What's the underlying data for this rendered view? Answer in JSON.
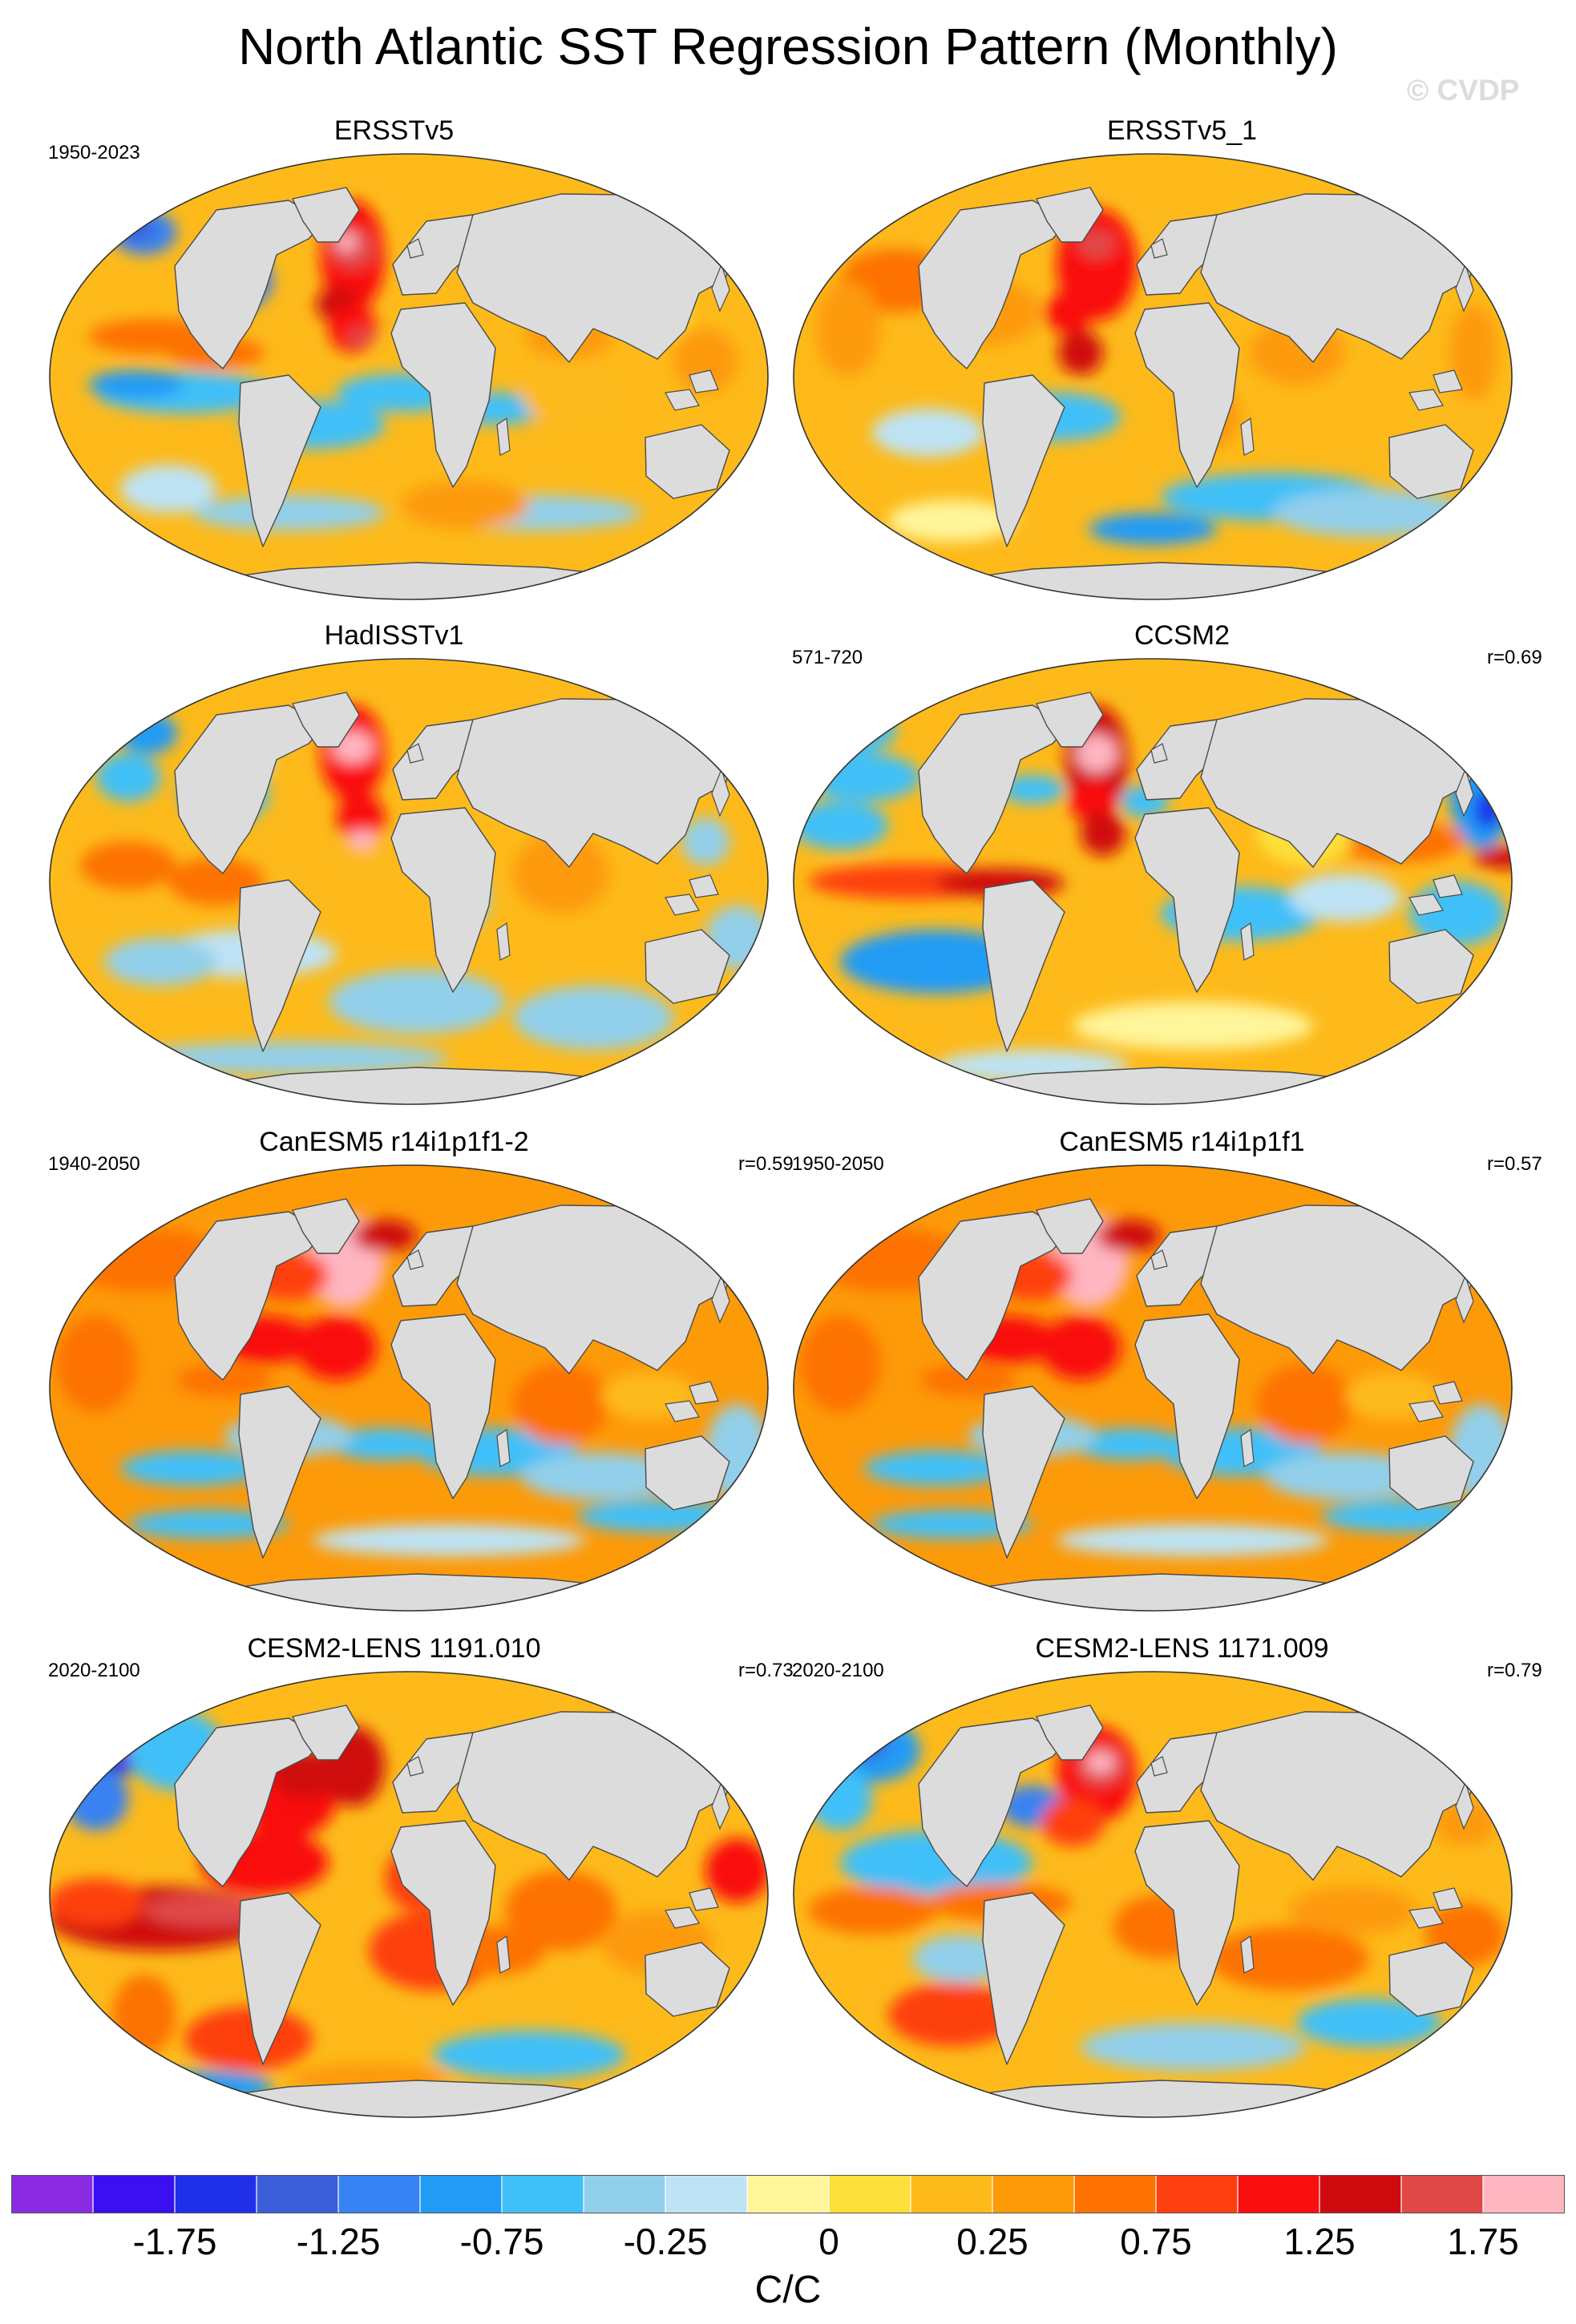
{
  "title": "North Atlantic SST Regression Pattern (Monthly)",
  "credit": "© CVDP",
  "panels": [
    {
      "name": "ERSSTv5",
      "period": "1950-2023",
      "r": "",
      "profile": "obs1"
    },
    {
      "name": "ERSSTv5_1",
      "period": "",
      "r": "",
      "profile": "obs2"
    },
    {
      "name": "HadISSTv1",
      "period": "",
      "r": "",
      "profile": "had"
    },
    {
      "name": "CCSM2",
      "period": "571-720",
      "r": "r=0.69",
      "profile": "ccsm"
    },
    {
      "name": "CanESM5 r14i1p1f1-2",
      "period": "1940-2050",
      "r": "r=0.59",
      "profile": "can"
    },
    {
      "name": "CanESM5 r14i1p1f1",
      "period": "1950-2050",
      "r": "r=0.57",
      "profile": "can"
    },
    {
      "name": "CESM2-LENS 1191.010",
      "period": "2020-2100",
      "r": "r=0.73",
      "profile": "cesmA"
    },
    {
      "name": "CESM2-LENS 1171.009",
      "period": "2020-2100",
      "r": "r=0.79",
      "profile": "cesmB"
    }
  ],
  "colorbar": {
    "colors": [
      "#8a2be2",
      "#3a10f0",
      "#1f30e8",
      "#3b5fd8",
      "#3782f2",
      "#219bf5",
      "#3fc0f8",
      "#92cfea",
      "#bde3f5",
      "#fff59a",
      "#fde03a",
      "#fdba1a",
      "#fd9a08",
      "#fd7200",
      "#fe4010",
      "#f90f10",
      "#cf0a0f",
      "#e04848",
      "#ffb6c1"
    ],
    "tick_labels": [
      "-1.75",
      "-1.25",
      "-0.75",
      "-0.25",
      "0",
      "0.25",
      "0.75",
      "1.25",
      "1.75"
    ],
    "units": "C/C"
  },
  "chart_data": {
    "type": "heatmap",
    "title": "North Atlantic SST Regression Pattern (Monthly)",
    "colorbar_units": "C/C",
    "contour_levels": [
      -2.0,
      -1.75,
      -1.5,
      -1.25,
      -1.0,
      -0.75,
      -0.5,
      -0.25,
      -0.1,
      0,
      0.1,
      0.25,
      0.5,
      0.75,
      1.0,
      1.25,
      1.5,
      1.75,
      2.0
    ],
    "colorbar_ticks": [
      -1.75,
      -1.25,
      -0.75,
      -0.25,
      0,
      0.25,
      0.75,
      1.25,
      1.75
    ],
    "panels": [
      {
        "name": "ERSSTv5",
        "period": "1950-2023",
        "r": null
      },
      {
        "name": "ERSSTv5_1",
        "period": null,
        "r": null
      },
      {
        "name": "HadISSTv1",
        "period": null,
        "r": null
      },
      {
        "name": "CCSM2",
        "period": "571-720",
        "r": 0.69
      },
      {
        "name": "CanESM5 r14i1p1f1-2",
        "period": "1940-2050",
        "r": 0.59
      },
      {
        "name": "CanESM5 r14i1p1f1",
        "period": "1950-2050",
        "r": 0.57
      },
      {
        "name": "CESM2-LENS 1191.010",
        "period": "2020-2100",
        "r": 0.73
      },
      {
        "name": "CESM2-LENS 1171.009",
        "period": "2020-2100",
        "r": 0.79
      }
    ]
  }
}
